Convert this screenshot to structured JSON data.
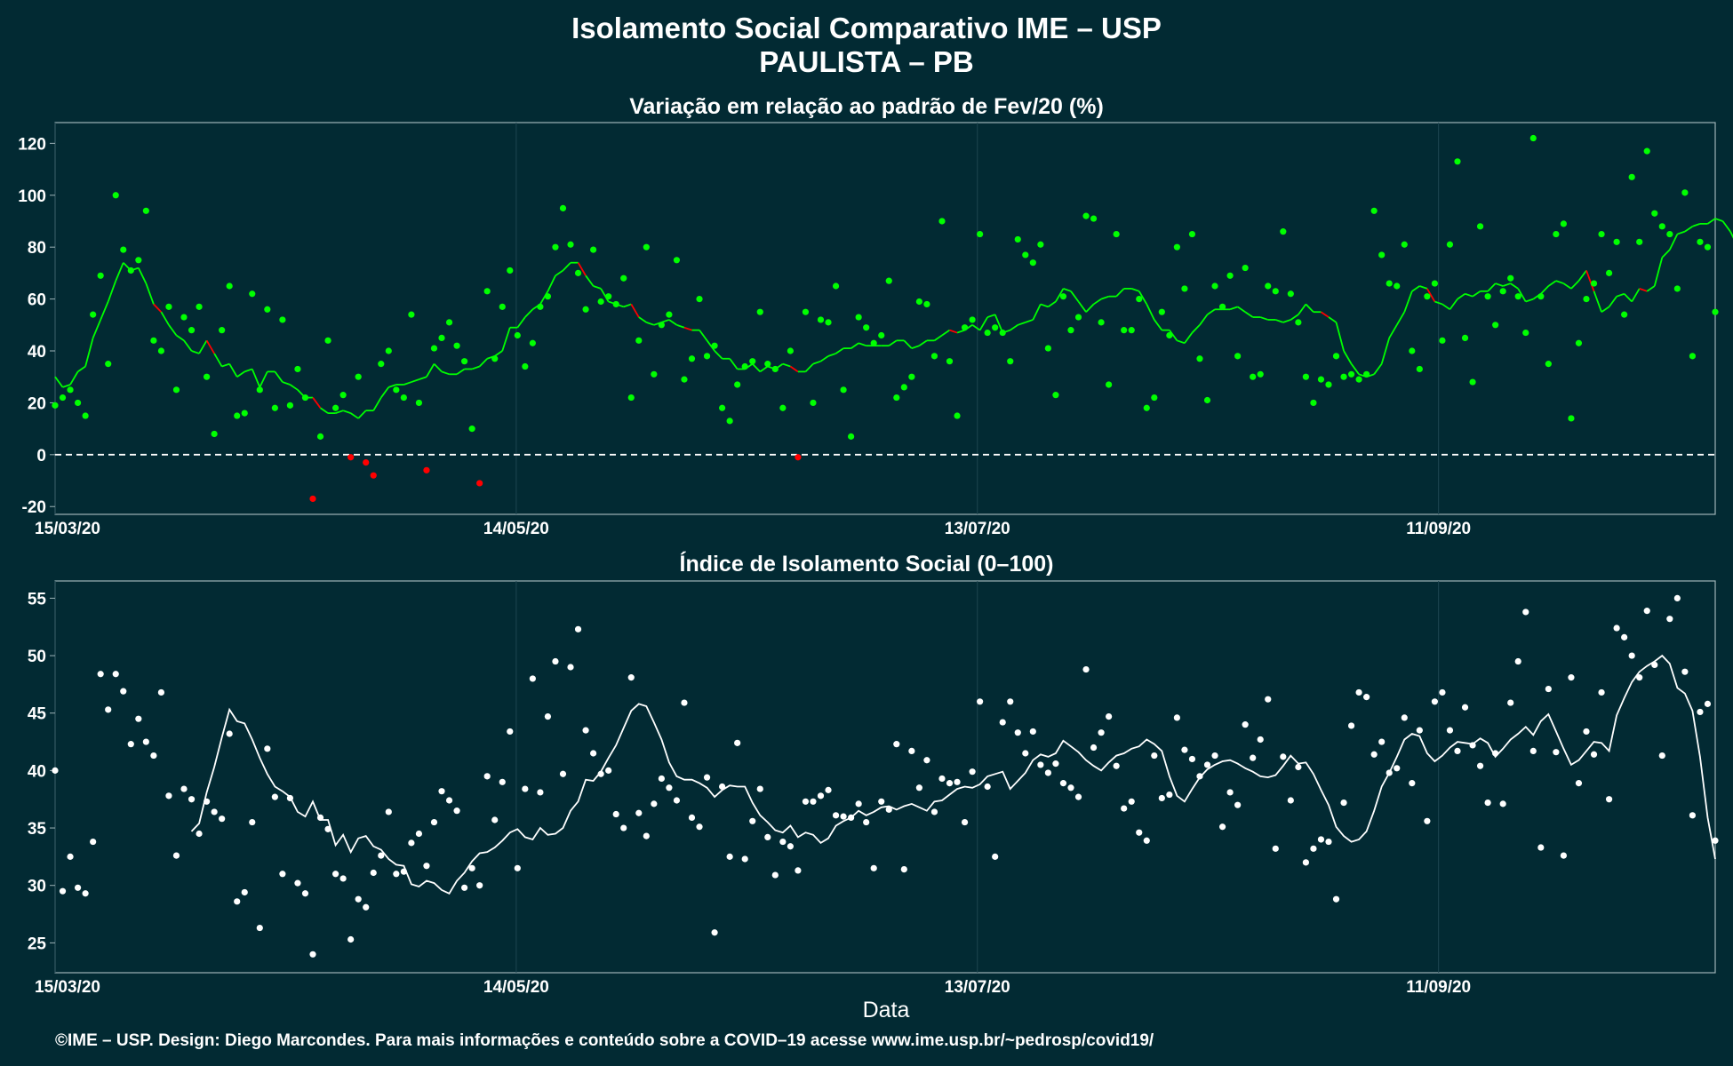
{
  "title_line1": "Isolamento Social Comparativo IME – USP",
  "title_line2": "PAULISTA – PB",
  "xlabel": "Data",
  "footer": "©IME – USP. Design: Diego Marcondes. Para mais informações e conteúdo sobre a COVID–19 acesse www.ime.usp.br/~pedrosp/covid19/",
  "colors": {
    "background": "#022a33",
    "positive": "#00ff00",
    "negative": "#ff0000",
    "index": "#ffffff",
    "grid": "#1e4651"
  },
  "chart_data": [
    {
      "type": "scatter",
      "title": "Variação em relação ao padrão de Fev/20 (%)",
      "x_start": "2020-03-15",
      "x_end": "2020-10-17",
      "x_ticks": [
        "15/03/20",
        "14/05/20",
        "13/07/20",
        "11/09/20"
      ],
      "x_tick_dates": [
        "2020-03-15",
        "2020-05-14",
        "2020-07-13",
        "2020-09-11"
      ],
      "y_ticks": [
        -20,
        0,
        20,
        40,
        60,
        80,
        100,
        120
      ],
      "ylim": [
        -23,
        128
      ],
      "reference_line": 0,
      "series": [
        {
          "values": [
            19,
            22,
            25,
            20,
            15,
            54,
            69,
            35,
            100,
            79,
            71,
            75,
            94,
            44,
            40,
            57,
            25,
            53,
            48,
            57,
            30,
            8,
            48,
            65,
            15,
            16,
            62,
            25,
            56,
            18,
            52,
            19,
            33,
            22,
            -17,
            7,
            44,
            18,
            23,
            -1,
            30,
            -3,
            -8,
            35,
            40,
            25,
            22,
            54,
            20,
            -6,
            41,
            45,
            51,
            42,
            36,
            10,
            -11,
            63,
            37,
            57,
            71,
            46,
            34,
            43,
            57,
            61,
            80,
            95,
            81,
            70,
            56,
            79,
            59,
            61,
            58,
            68,
            22,
            44,
            80,
            31,
            50,
            54,
            75,
            29,
            37,
            60,
            38,
            42,
            18,
            13,
            27,
            34,
            36,
            55,
            35,
            33,
            18,
            40,
            -1,
            55,
            20,
            52,
            51,
            65,
            25,
            7,
            53,
            49,
            43,
            46,
            67,
            22,
            26,
            30,
            59,
            58,
            38,
            90,
            36,
            15,
            49,
            52,
            85,
            47,
            49,
            47,
            36,
            83,
            77,
            74,
            81,
            41,
            23,
            61,
            48,
            53,
            92,
            91,
            51,
            27,
            85,
            48,
            48,
            60,
            18,
            22,
            55,
            46,
            80,
            64,
            85,
            37,
            21,
            65,
            57,
            69,
            38,
            72,
            30,
            31,
            65,
            63,
            86,
            62,
            51,
            30,
            20,
            29,
            27,
            38,
            30,
            31,
            29,
            31,
            94,
            77,
            66,
            65,
            81,
            40,
            33,
            61,
            66,
            44,
            81,
            113,
            45,
            28,
            88,
            61,
            50,
            63,
            68,
            61,
            47,
            122,
            61,
            35,
            85,
            89,
            14,
            43,
            60,
            66,
            85,
            70,
            82,
            54,
            107,
            82,
            117,
            93,
            88,
            85,
            64,
            101,
            38,
            82,
            80,
            55
          ]
        },
        {
          "values": [
            30,
            26,
            27,
            32,
            34,
            45,
            52,
            59,
            67,
            74,
            71,
            72,
            66,
            58,
            55,
            50,
            46,
            44,
            40,
            39,
            44,
            39,
            34,
            35,
            30,
            32,
            33,
            26,
            32,
            32,
            28,
            27,
            25,
            22,
            22,
            18,
            16,
            16,
            17,
            16,
            14,
            17,
            17,
            22,
            26,
            27,
            27,
            28,
            29,
            30,
            35,
            32,
            31,
            31,
            33,
            33,
            34,
            37,
            38,
            40,
            49,
            49,
            53,
            56,
            58,
            63,
            69,
            71,
            74,
            74,
            69,
            65,
            64,
            59,
            58,
            57,
            58,
            53,
            51,
            50,
            51,
            52,
            50,
            49,
            48,
            48,
            44,
            40,
            37,
            37,
            33,
            33,
            35,
            32,
            34,
            33,
            35,
            34,
            32,
            32,
            35,
            36,
            38,
            39,
            41,
            41,
            43,
            42,
            42,
            42,
            42,
            44,
            44,
            41,
            42,
            44,
            44,
            46,
            48,
            47,
            48,
            50,
            48,
            53,
            54,
            47,
            48,
            50,
            51,
            52,
            58,
            57,
            59,
            64,
            63,
            59,
            55,
            58,
            60,
            61,
            61,
            64,
            64,
            63,
            58,
            52,
            48,
            48,
            44,
            43,
            47,
            50,
            54,
            56,
            56,
            56,
            57,
            55,
            53,
            53,
            52,
            52,
            51,
            52,
            54,
            58,
            55,
            55,
            53,
            51,
            40,
            35,
            31,
            30,
            31,
            35,
            45,
            50,
            55,
            63,
            65,
            64,
            59,
            58,
            56,
            60,
            62,
            61,
            63,
            63,
            66,
            65,
            66,
            64,
            59,
            60,
            62,
            65,
            67,
            66,
            64,
            67,
            71,
            63,
            55,
            57,
            61,
            62,
            59,
            64,
            63,
            65,
            76,
            79,
            85,
            86,
            88,
            89,
            89,
            91,
            90,
            86,
            80,
            78,
            72
          ]
        }
      ],
      "legend": "none"
    },
    {
      "type": "scatter",
      "title": "Índice de Isolamento Social (0–100)",
      "x_start": "2020-03-15",
      "x_end": "2020-10-17",
      "x_ticks": [
        "15/03/20",
        "14/05/20",
        "13/07/20",
        "11/09/20"
      ],
      "x_tick_dates": [
        "2020-03-15",
        "2020-05-14",
        "2020-07-13",
        "2020-09-11"
      ],
      "y_ticks": [
        25,
        30,
        35,
        40,
        45,
        50,
        55
      ],
      "ylim": [
        22.4,
        56.5
      ],
      "series": [
        {
          "values": [
            40,
            29.5,
            32.5,
            29.8,
            29.3,
            33.8,
            48.4,
            45.3,
            48.4,
            46.9,
            42.3,
            44.5,
            42.5,
            41.3,
            46.8,
            37.8,
            32.6,
            38.4,
            37.5,
            34.5,
            37.3,
            36.4,
            35.8,
            43.2,
            28.6,
            29.4,
            35.5,
            26.3,
            41.9,
            37.7,
            31,
            37.6,
            30.2,
            29.3,
            24,
            35.9,
            34.9,
            31,
            30.6,
            25.3,
            28.8,
            28.1,
            31.1,
            32.6,
            36.4,
            31,
            31.2,
            33.7,
            34.5,
            31.7,
            35.5,
            38.2,
            37.4,
            36.5,
            29.8,
            31.5,
            30,
            39.5,
            35.7,
            39,
            43.4,
            31.5,
            38.4,
            48,
            38.1,
            44.7,
            49.5,
            39.7,
            49,
            52.3,
            43.5,
            41.5,
            39.7,
            40,
            36.2,
            35,
            48.1,
            36.3,
            34.3,
            37.1,
            39.3,
            38.5,
            37.4,
            45.9,
            35.9,
            35.1,
            39.4,
            25.9,
            38.6,
            32.5,
            42.4,
            32.3,
            35.6,
            38.4,
            34.2,
            30.9,
            33.8,
            33.4,
            31.3,
            37.3,
            37.3,
            37.8,
            38.3,
            36.1,
            36,
            35.9,
            37.1,
            35.5,
            31.5,
            37.3,
            36.6,
            42.3,
            31.4,
            41.7,
            38.5,
            40.9,
            36.4,
            39.3,
            38.9,
            39,
            35.5,
            39.9,
            46,
            38.6,
            32.5,
            44.2,
            46,
            43.3,
            41.5,
            43.4,
            40.5,
            39.8,
            40.6,
            38.9,
            38.5,
            37.7,
            48.8,
            42,
            43.3,
            44.7,
            40.4,
            36.7,
            37.3,
            34.6,
            33.9,
            41.3,
            37.6,
            37.9,
            44.6,
            41.8,
            41,
            39.5,
            40.5,
            41.3,
            35.1,
            38.1,
            37,
            44,
            41.1,
            42.7,
            46.2,
            33.2,
            41.2,
            37.4,
            40.3,
            32,
            33.2,
            34,
            33.8,
            28.8,
            37.2,
            43.9,
            46.8,
            46.4,
            41.4,
            42.5,
            39.8,
            40.2,
            44.6,
            38.9,
            43.5,
            35.6,
            46,
            46.8,
            43.5,
            41.7,
            45.5,
            42.2,
            40.4,
            37.2,
            41.5,
            37.1,
            45.9,
            49.5,
            53.8,
            41.7,
            33.3,
            47.1,
            41.6,
            32.6,
            48.1,
            38.9,
            43.4,
            41.4,
            46.8,
            37.5,
            52.4,
            51.6,
            50,
            48.1,
            53.9,
            49.2,
            41.3,
            53.2,
            55,
            48.6,
            36.1,
            45.1,
            45.8,
            33.9
          ]
        },
        {
          "values": [
            34.7,
            35.4,
            38.1,
            40.3,
            42.9,
            45.3,
            44.3,
            44.1,
            42.7,
            41.1,
            39.7,
            38.6,
            38.2,
            37.7,
            36.4,
            36,
            37.3,
            35.7,
            35.7,
            33.5,
            34.4,
            32.9,
            34.1,
            34.3,
            33.4,
            33.1,
            32.3,
            31.8,
            31.7,
            30.1,
            29.9,
            30.4,
            30.2,
            29.6,
            29.3,
            30.4,
            31.1,
            32.1,
            32.8,
            32.9,
            33.3,
            33.9,
            34.6,
            34.9,
            34.2,
            34.0,
            35.0,
            34.4,
            34.5,
            35.0,
            36.5,
            37.3,
            39.2,
            39.1,
            39.9,
            41.1,
            42.2,
            43.7,
            45.2,
            45.8,
            45.6,
            44.2,
            42.7,
            40.7,
            39.5,
            39.2,
            39.2,
            38.9,
            38.5,
            37.7,
            38.3,
            38.7,
            38.6,
            38.6,
            37.2,
            36.1,
            35.5,
            34.8,
            34.6,
            35.2,
            34.2,
            34.6,
            34.4,
            33.7,
            34.1,
            35.2,
            35.6,
            35.9,
            36.5,
            36.1,
            36.4,
            36.8,
            36.9,
            36.6,
            36.9,
            37.1,
            36.8,
            36.5,
            37.3,
            37.4,
            37.9,
            38.4,
            38.6,
            38.5,
            38.8,
            39.5,
            39.7,
            39.9,
            38.4,
            39.1,
            39.8,
            40.9,
            41.4,
            41.2,
            41.5,
            42.6,
            42.1,
            41.6,
            40.9,
            40.4,
            40.0,
            40.7,
            41.3,
            41.5,
            41.9,
            42.1,
            42.7,
            42.3,
            41.7,
            39.5,
            37.8,
            37.3,
            38.4,
            39.4,
            40.1,
            40.5,
            40.8,
            40.9,
            40.6,
            40.2,
            39.9,
            39.5,
            39.4,
            39.6,
            40.4,
            41.3,
            40.6,
            40.7,
            39.7,
            38.3,
            37.0,
            35.1,
            34.3,
            33.8,
            34.0,
            34.7,
            36.5,
            38.6,
            39.8,
            41.2,
            42.7,
            43.2,
            43.0,
            41.5,
            40.8,
            41.3,
            42.0,
            42.5,
            42.4,
            42.3,
            42.8,
            42.4,
            41.2,
            41.9,
            42.7,
            43.2,
            43.8,
            43.1,
            44.3,
            44.9,
            43.4,
            41.9,
            40.5,
            40.9,
            41.7,
            42.5,
            42.4,
            41.7,
            44.8,
            46.3,
            47.7,
            48.6,
            49.1,
            49.5,
            50.0,
            49.3,
            47.2,
            46.7,
            45.2,
            41.2,
            35.9,
            32.3
          ]
        }
      ],
      "legend": "none"
    }
  ]
}
